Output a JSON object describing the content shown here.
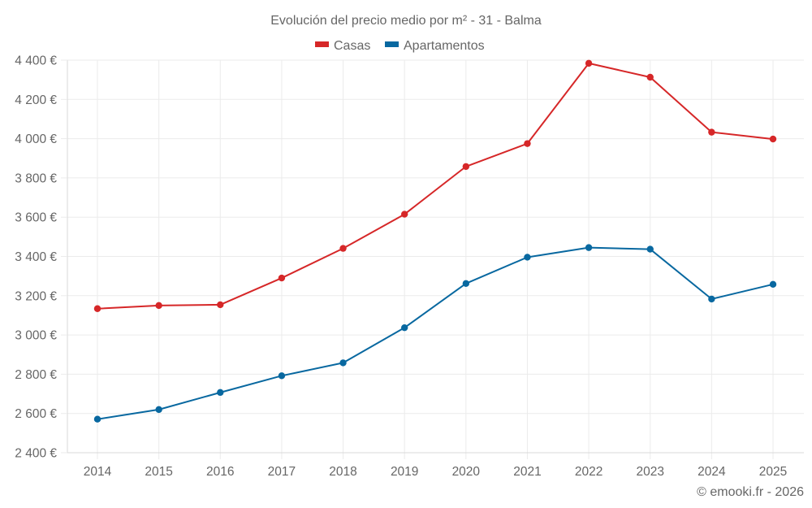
{
  "chart_data": {
    "type": "line",
    "title": "Evolución del precio medio por m² - 31 - Balma",
    "xlabel": "",
    "ylabel": "",
    "x": [
      "2014",
      "2015",
      "2016",
      "2017",
      "2018",
      "2019",
      "2020",
      "2021",
      "2022",
      "2023",
      "2024",
      "2025"
    ],
    "ylim": [
      2400,
      4400
    ],
    "yticks": [
      2400,
      2600,
      2800,
      3000,
      3200,
      3400,
      3600,
      3800,
      4000,
      4200,
      4400
    ],
    "ytick_labels": [
      "2 400 €",
      "2 600 €",
      "2 800 €",
      "3 000 €",
      "3 200 €",
      "3 400 €",
      "3 600 €",
      "3 800 €",
      "4 000 €",
      "4 200 €",
      "4 400 €"
    ],
    "grid": true,
    "legend_position": "top-center",
    "series": [
      {
        "name": "Casas",
        "color": "#d62728",
        "values": [
          3134,
          3150,
          3154,
          3290,
          3441,
          3615,
          3858,
          3975,
          4384,
          4313,
          4033,
          3998
        ]
      },
      {
        "name": "Apartamentos",
        "color": "#0868a0",
        "values": [
          2571,
          2620,
          2707,
          2792,
          2858,
          3037,
          3262,
          3396,
          3445,
          3437,
          3183,
          3258
        ]
      }
    ]
  },
  "credit": "© emooki.fr - 2026"
}
